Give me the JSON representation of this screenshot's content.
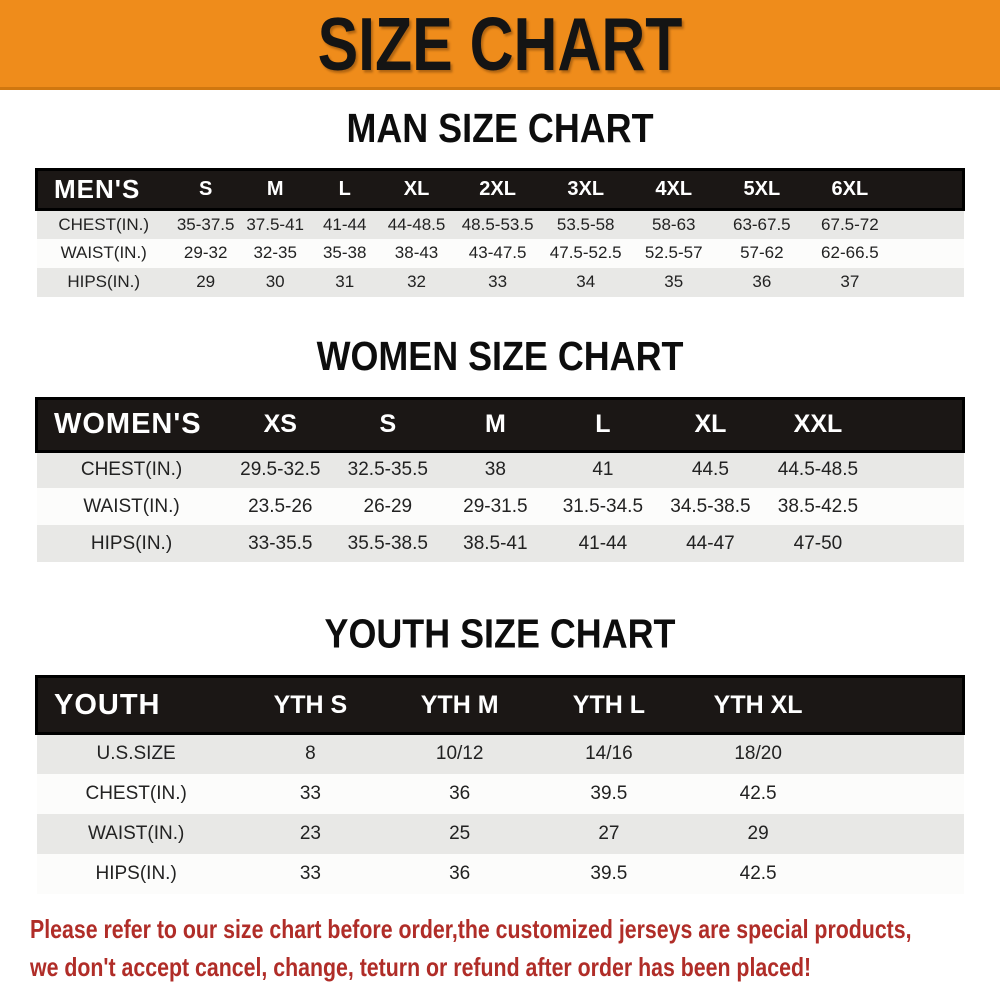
{
  "banner": {
    "title": "SIZE CHART",
    "bg_color": "#EF8C1B",
    "text_color": "#141414"
  },
  "colors": {
    "table_header_bg": "#1B1715",
    "table_header_text": "#ffffff",
    "row_stripe_gray": "#E8E8E6",
    "row_stripe_white": "#FCFCFB",
    "note_red": "#B02D28"
  },
  "chart_data": [
    {
      "type": "table",
      "title": "MAN SIZE CHART",
      "label": "MEN'S",
      "columns": [
        "S",
        "M",
        "L",
        "XL",
        "2XL",
        "3XL",
        "4XL",
        "5XL",
        "6XL"
      ],
      "rows": [
        {
          "label": "CHEST(IN.)",
          "values": [
            "35-37.5",
            "37.5-41",
            "41-44",
            "44-48.5",
            "48.5-53.5",
            "53.5-58",
            "58-63",
            "63-67.5",
            "67.5-72"
          ]
        },
        {
          "label": "WAIST(IN.)",
          "values": [
            "29-32",
            "32-35",
            "35-38",
            "38-43",
            "43-47.5",
            "47.5-52.5",
            "52.5-57",
            "57-62",
            "62-66.5"
          ]
        },
        {
          "label": "HIPS(IN.)",
          "values": [
            "29",
            "30",
            "31",
            "32",
            "33",
            "34",
            "35",
            "36",
            "37"
          ]
        }
      ]
    },
    {
      "type": "table",
      "title": "WOMEN SIZE CHART",
      "label": "WOMEN'S",
      "columns": [
        "XS",
        "S",
        "M",
        "L",
        "XL",
        "XXL"
      ],
      "rows": [
        {
          "label": "CHEST(IN.)",
          "values": [
            "29.5-32.5",
            "32.5-35.5",
            "38",
            "41",
            "44.5",
            "44.5-48.5"
          ]
        },
        {
          "label": "WAIST(IN.)",
          "values": [
            "23.5-26",
            "26-29",
            "29-31.5",
            "31.5-34.5",
            "34.5-38.5",
            "38.5-42.5"
          ]
        },
        {
          "label": "HIPS(IN.)",
          "values": [
            "33-35.5",
            "35.5-38.5",
            "38.5-41",
            "41-44",
            "44-47",
            "47-50"
          ]
        }
      ]
    },
    {
      "type": "table",
      "title": "YOUTH SIZE CHART",
      "label": "YOUTH",
      "columns": [
        "YTH S",
        "YTH M",
        "YTH L",
        "YTH XL"
      ],
      "rows": [
        {
          "label": "U.S.SIZE",
          "values": [
            "8",
            "10/12",
            "14/16",
            "18/20"
          ]
        },
        {
          "label": "CHEST(IN.)",
          "values": [
            "33",
            "36",
            "39.5",
            "42.5"
          ]
        },
        {
          "label": "WAIST(IN.)",
          "values": [
            "23",
            "25",
            "27",
            "29"
          ]
        },
        {
          "label": "HIPS(IN.)",
          "values": [
            "33",
            "36",
            "39.5",
            "42.5"
          ]
        }
      ]
    }
  ],
  "footer_note": {
    "lines": [
      "Please refer to our size chart before order,the customized jerseys are special products,",
      "we don't accept cancel, change, teturn or refund after order has been placed!"
    ]
  }
}
